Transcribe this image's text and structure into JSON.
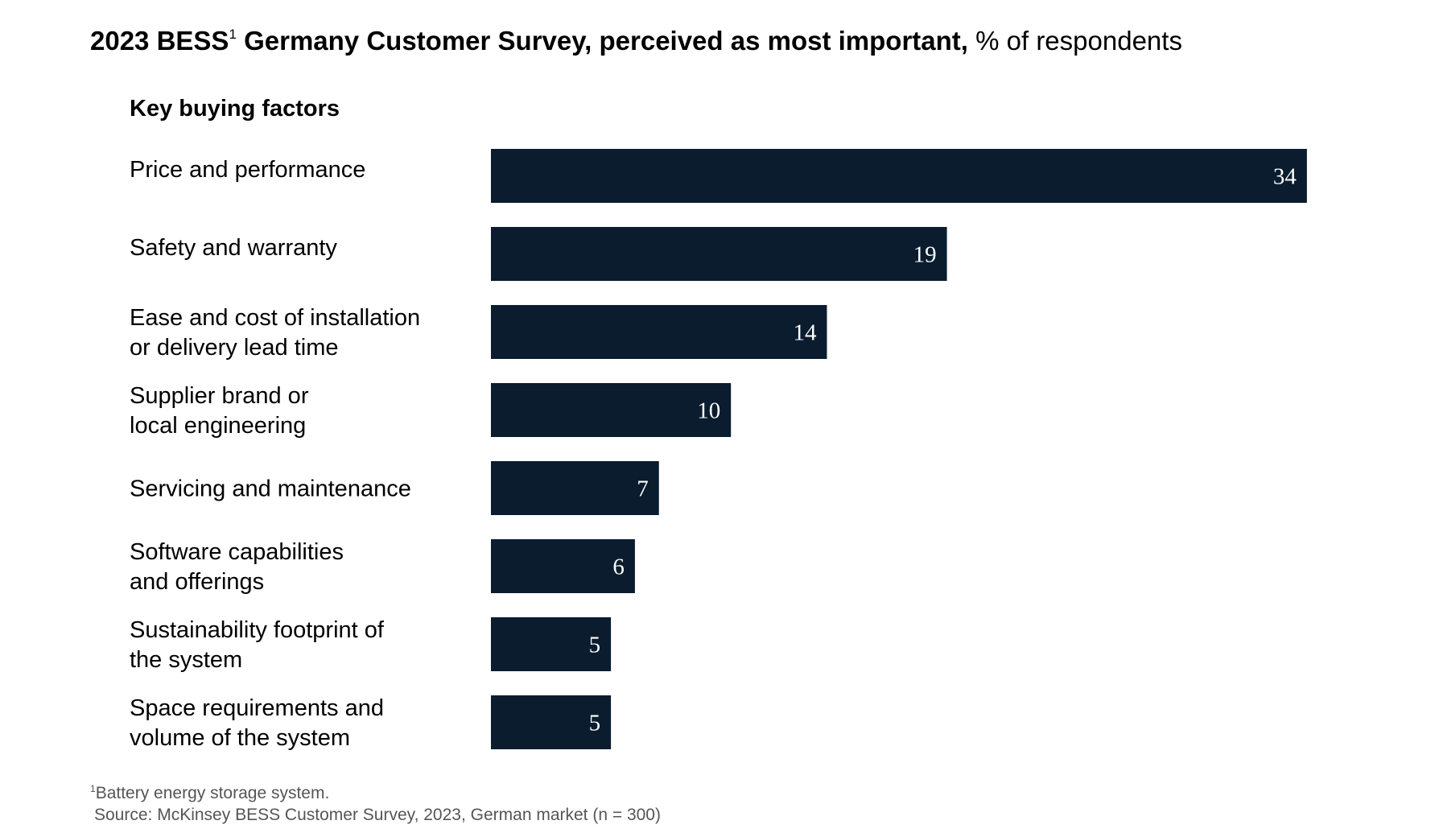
{
  "title": {
    "bold_part": "2023 BESS",
    "footnote_marker": "1",
    "bold_part_2": " Germany Customer Survey, perceived as most important,",
    "regular_part": " % of respondents"
  },
  "chart_data": {
    "type": "bar",
    "orientation": "horizontal",
    "column_header": "Key buying factors",
    "categories": [
      "Price and performance",
      "Safety and warranty",
      "Ease and cost of installation or delivery lead time",
      "Supplier brand or local engineering",
      "Servicing and maintenance",
      "Software capabilities and offerings",
      "Sustainability footprint of the system",
      "Space requirements and volume of the system"
    ],
    "category_lines": [
      [
        "Price and performance"
      ],
      [
        "Safety and warranty"
      ],
      [
        "Ease and cost of installation",
        "or delivery lead time"
      ],
      [
        "Supplier brand or",
        "local engineering"
      ],
      [
        "Servicing and maintenance"
      ],
      [
        "Software capabilities",
        "and offerings"
      ],
      [
        "Sustainability footprint of",
        "the system"
      ],
      [
        "Space requirements and",
        "volume of the system"
      ]
    ],
    "values": [
      34,
      19,
      14,
      10,
      7,
      6,
      5,
      5
    ],
    "value_labels": [
      "34",
      "19",
      "14",
      "10",
      "7",
      "6",
      "5",
      "5"
    ],
    "unit": "% of respondents",
    "bar_color": "#0a1c2e",
    "value_label_color": "#ffffff",
    "grid": false,
    "legend": "none"
  },
  "footnote": {
    "marker": "1",
    "text": "Battery energy storage system."
  },
  "source": "Source: McKinsey BESS Customer Survey, 2023, German market (n = 300)"
}
